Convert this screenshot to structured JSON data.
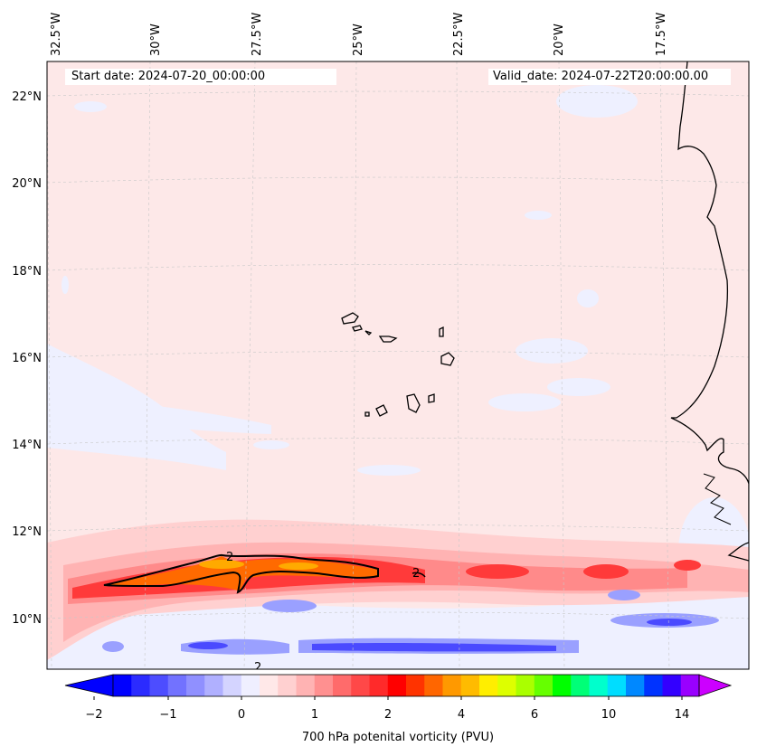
{
  "map": {
    "start_date": "Start date: 2024-07-20_00:00:00",
    "valid_date": "Valid_date: 2024-07-22T20:00:00.00",
    "lon_labels": [
      "32.5°W",
      "30°W",
      "27.5°W",
      "25°W",
      "22.5°W",
      "20°W",
      "17.5°W"
    ],
    "lat_labels": [
      "22°N",
      "20°N",
      "18°N",
      "16°N",
      "14°N",
      "12°N",
      "10°N"
    ],
    "contour_labels": [
      "2",
      "2",
      "2"
    ],
    "colors": {
      "background_field": "#fde8e8",
      "coast": "#000000",
      "grid": "#c8c8c8",
      "contour": "#000000"
    }
  },
  "colorbar": {
    "label": "700 hPa potenital vorticity (PVU)",
    "tick_labels": [
      "−2",
      "−1",
      "0",
      "1",
      "2",
      "4",
      "6",
      "10",
      "14"
    ],
    "colors": [
      "#0000ff",
      "#2b2bff",
      "#4d4dff",
      "#7272ff",
      "#9090ff",
      "#b0b0ff",
      "#d4d4ff",
      "#efefff",
      "#ffe8e8",
      "#ffd0d0",
      "#ffb3b3",
      "#ff9090",
      "#ff6b6b",
      "#ff4848",
      "#ff2a2a",
      "#ff0000",
      "#ff3300",
      "#ff6600",
      "#ff9900",
      "#ffbb00",
      "#ffee00",
      "#ddff00",
      "#aaff00",
      "#66ff00",
      "#00ff00",
      "#00ff77",
      "#00ffcc",
      "#00ddff",
      "#0088ff",
      "#0033ff",
      "#3300ff",
      "#9900ff"
    ],
    "under_color": "#0000ff",
    "over_color": "#cc00ff"
  }
}
